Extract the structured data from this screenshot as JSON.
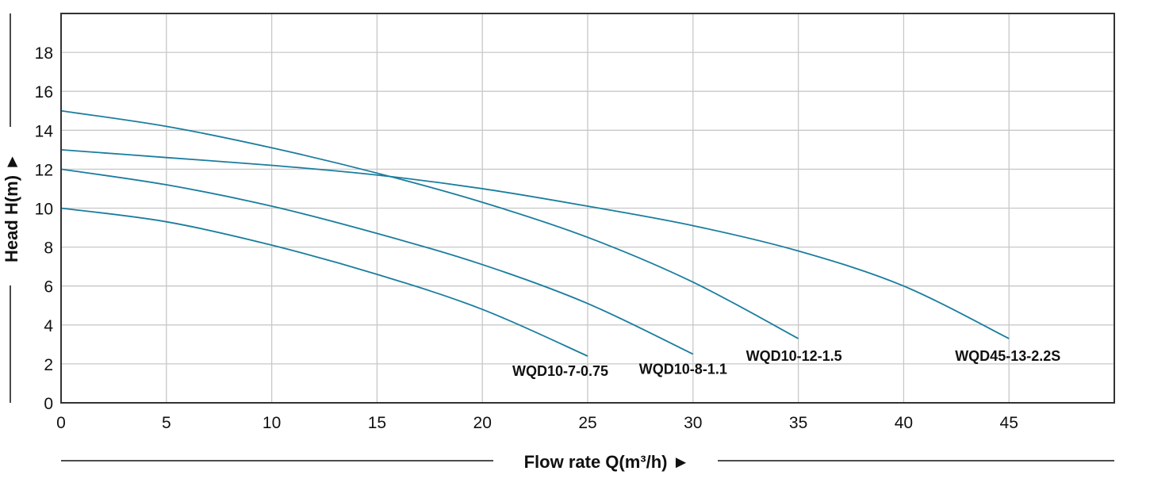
{
  "chart_data": {
    "type": "line",
    "title": "",
    "xlabel": "Flow rate Q(m³/h) ►",
    "ylabel": "Head H(m) ►",
    "xlim": [
      0,
      50
    ],
    "ylim": [
      0,
      20
    ],
    "xticks": [
      0,
      5,
      10,
      15,
      20,
      25,
      30,
      35,
      40,
      45
    ],
    "yticks": [
      0,
      2,
      4,
      6,
      8,
      10,
      12,
      14,
      16,
      18
    ],
    "grid": true,
    "line_color": "#1a7d9e",
    "series": [
      {
        "name": "WQD10-7-0.75",
        "x": [
          0,
          5,
          10,
          15,
          20,
          25
        ],
        "y": [
          10,
          9.3,
          8.1,
          6.6,
          4.8,
          2.4
        ]
      },
      {
        "name": "WQD10-8-1.1",
        "x": [
          0,
          5,
          10,
          15,
          20,
          25,
          30
        ],
        "y": [
          12,
          11.2,
          10.1,
          8.7,
          7.1,
          5.1,
          2.5
        ]
      },
      {
        "name": "WQD10-12-1.5",
        "x": [
          0,
          5,
          10,
          15,
          20,
          25,
          30,
          35
        ],
        "y": [
          15,
          14.2,
          13.1,
          11.8,
          10.3,
          8.5,
          6.2,
          3.3
        ]
      },
      {
        "name": "WQD45-13-2.2S",
        "x": [
          0,
          5,
          10,
          15,
          20,
          25,
          30,
          35,
          40,
          45
        ],
        "y": [
          13,
          12.6,
          12.2,
          11.7,
          11.0,
          10.1,
          9.1,
          7.8,
          6.0,
          3.3
        ]
      }
    ]
  }
}
